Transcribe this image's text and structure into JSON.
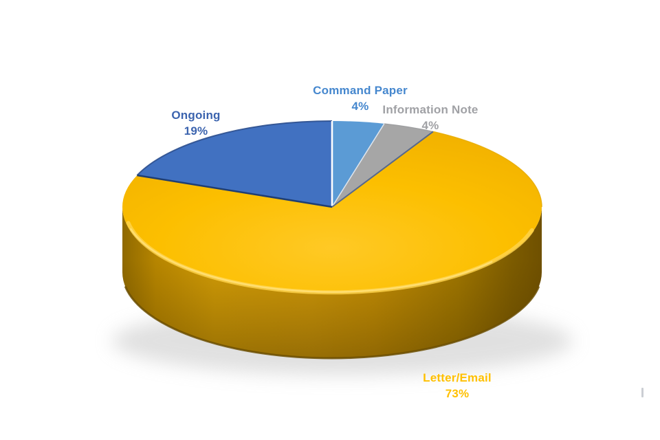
{
  "page": {
    "background": "#ffffff"
  },
  "chart_data": {
    "type": "pie",
    "style": "3d-exploded-none, extruded rim, beveled edge",
    "title": "",
    "legend": "none",
    "start_angle_deg": 0,
    "clockwise": true,
    "unit": "%",
    "categories": [
      "Command Paper",
      "Information Note",
      "Letter/Email",
      "Ongoing"
    ],
    "values": [
      4,
      4,
      73,
      19
    ],
    "slices": [
      {
        "label": "Command Paper",
        "value": 4,
        "display": "4%",
        "color": "#5B9BD5",
        "label_color": "#4587CE"
      },
      {
        "label": "Information Note",
        "value": 4,
        "display": "4%",
        "color": "#A6A6A6",
        "label_color": "#A0A1A5"
      },
      {
        "label": "Letter/Email",
        "value": 73,
        "display": "73%",
        "color": "#FCBF00",
        "label_color": "#FFC000"
      },
      {
        "label": "Ongoing",
        "value": 19,
        "display": "19%",
        "color": "#4171C1",
        "label_color": "#3B63AE"
      }
    ],
    "colors": {
      "rim_dark": "#6F5000",
      "rim_mid": "#CC9608",
      "bevel_highlight": "#FFD44D",
      "boundary_navy": "#1F3E73",
      "boundary_slate": "#56688C",
      "boundary_white": "#FFFFFF",
      "shadow": "#C8C8C8"
    }
  }
}
